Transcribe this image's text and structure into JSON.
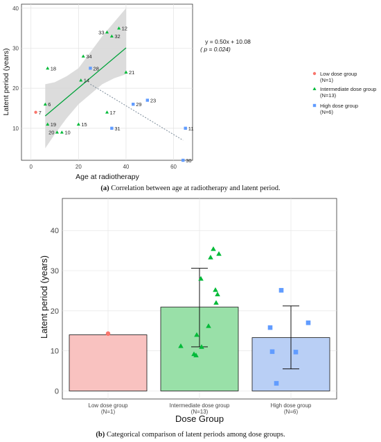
{
  "chart_data": [
    {
      "type": "scatter",
      "xlabel": "Age at radiotherapy",
      "ylabel": "Latent period (years)",
      "xlim": [
        -4,
        68
      ],
      "ylim": [
        2,
        41
      ],
      "x_ticks": [
        "0",
        "20",
        "40",
        "60"
      ],
      "y_ticks": [
        "10",
        "20",
        "30",
        "40"
      ],
      "grid": true,
      "legend_position": "right",
      "annotation": [
        "y = 0.50x + 10.08",
        "( p = 0.024)"
      ],
      "series": [
        {
          "name": "Low dose group",
          "name_sub": "(N=1)",
          "color": "#F8766D",
          "marker": "circle",
          "points": [
            {
              "label": "7",
              "x": 2,
              "y": 14
            }
          ]
        },
        {
          "name": "Intermediate dose group",
          "name_sub": "(N=13)",
          "color": "#00BA38",
          "marker": "triangle",
          "points": [
            {
              "label": "6",
              "x": 6,
              "y": 16
            },
            {
              "label": "18",
              "x": 7,
              "y": 25
            },
            {
              "label": "19",
              "x": 7,
              "y": 11
            },
            {
              "label": "20",
              "x": 11,
              "y": 9
            },
            {
              "label": "10",
              "x": 13,
              "y": 9
            },
            {
              "label": "14",
              "x": 21,
              "y": 22
            },
            {
              "label": "15",
              "x": 20,
              "y": 11
            },
            {
              "label": "34",
              "x": 22,
              "y": 28
            },
            {
              "label": "33",
              "x": 32,
              "y": 34
            },
            {
              "label": "32",
              "x": 34,
              "y": 33
            },
            {
              "label": "12",
              "x": 37,
              "y": 35
            },
            {
              "label": "17",
              "x": 32,
              "y": 14
            },
            {
              "label": "21",
              "x": 40,
              "y": 24
            }
          ]
        },
        {
          "name": "High dose group",
          "name_sub": "(N=6)",
          "color": "#619CFF",
          "marker": "square",
          "points": [
            {
              "label": "28",
              "x": 25,
              "y": 25
            },
            {
              "label": "31",
              "x": 34,
              "y": 10
            },
            {
              "label": "29",
              "x": 43,
              "y": 16
            },
            {
              "label": "23",
              "x": 49,
              "y": 17
            },
            {
              "label": "11",
              "x": 65,
              "y": 10
            },
            {
              "label": "30",
              "x": 64,
              "y": 2
            }
          ]
        }
      ],
      "fit_line": {
        "slope": 0.5,
        "intercept": 10.08,
        "x_range": [
          6,
          40
        ],
        "color": "#00A23A"
      },
      "confidence_band": {
        "x": [
          6,
          10,
          15,
          20,
          25,
          30,
          35,
          40
        ],
        "lower": [
          5,
          8.5,
          12.5,
          16,
          18.5,
          21,
          22.5,
          23.5
        ],
        "upper": [
          21,
          21.5,
          23,
          25,
          29,
          33,
          36.5,
          40
        ]
      },
      "trend_line": {
        "x": [
          25,
          64
        ],
        "y": [
          21,
          7
        ],
        "color": "#7a8a99"
      }
    },
    {
      "type": "bar",
      "xlabel": "Dose Group",
      "ylabel": "Latent period (years)",
      "ylim": [
        -2,
        48
      ],
      "y_ticks": [
        "0",
        "10",
        "20",
        "30",
        "40"
      ],
      "grid": true,
      "categories": [
        {
          "name": "Low dose group",
          "sub": "(N=1)"
        },
        {
          "name": "Intermediate dose group",
          "sub": "(N=13)"
        },
        {
          "name": "High dose group",
          "sub": "(N=6)"
        }
      ],
      "values": [
        14,
        20.9,
        13.3
      ],
      "error": [
        null,
        [
          11,
          30.6
        ],
        [
          5.5,
          21.2
        ]
      ],
      "fill_colors": [
        "#F9C2C0",
        "#99E0A8",
        "#B9CFF5"
      ],
      "point_colors": [
        "#F8766D",
        "#00BA38",
        "#619CFF"
      ],
      "points": [
        [
          14.3
        ],
        [
          35.4,
          34.2,
          33.3,
          28,
          25.2,
          24.1,
          22,
          16.2,
          14,
          11.2,
          11,
          9.2,
          8.9
        ],
        [
          25.1,
          17,
          15.8,
          9.8,
          9.7,
          1.9
        ]
      ]
    }
  ],
  "captions": {
    "a_label": "(a)",
    "a_text": " Correlation between age at radiotherapy and latent period.",
    "b_label": "(b)",
    "b_text": " Categorical comparison of latent periods among dose groups."
  }
}
